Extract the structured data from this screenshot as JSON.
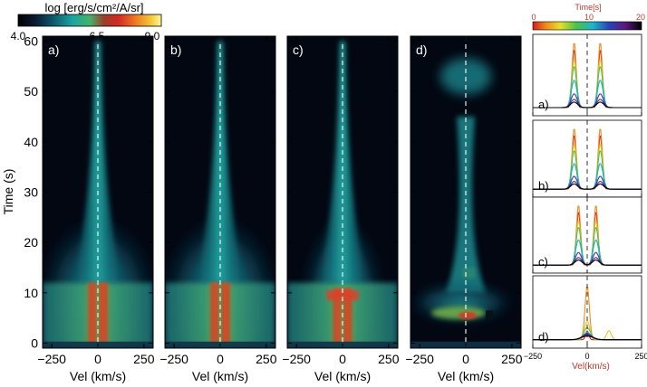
{
  "colorbar_intensity": {
    "label": "log [erg/s/cm²/A/sr]",
    "ticks": [
      "4.0",
      "6.5",
      "9.0"
    ],
    "range": [
      4.0,
      9.0
    ]
  },
  "colorbar_time": {
    "label": "Time[s]",
    "ticks": [
      "0",
      "10",
      "20"
    ],
    "range": [
      0,
      20
    ]
  },
  "axes_text": {
    "ylabel": "Time (s)",
    "xlabel": "Vel (km/s)",
    "mini_xlabel": "Vel(km/s)"
  },
  "chart_data": [
    {
      "type": "heatmap",
      "panel": "a)",
      "xlabel": "Vel (km/s)",
      "ylabel": "Time (s)",
      "xlim": [
        -300,
        300
      ],
      "ylim": [
        -1,
        61
      ],
      "xticks": [
        "-250",
        "0",
        "250"
      ],
      "yticks": [
        "0",
        "10",
        "20",
        "30",
        "40",
        "50",
        "60"
      ],
      "peak_offset": 30,
      "burst_time": [
        0,
        12
      ]
    },
    {
      "type": "heatmap",
      "panel": "b)",
      "xlabel": "Vel (km/s)",
      "xlim": [
        -300,
        300
      ],
      "ylim": [
        -1,
        61
      ],
      "xticks": [
        "-250",
        "0",
        "250"
      ],
      "peak_offset": 30,
      "burst_time": [
        0,
        12
      ]
    },
    {
      "type": "heatmap",
      "panel": "c)",
      "xlabel": "Vel (km/s)",
      "xlim": [
        -300,
        300
      ],
      "ylim": [
        -1,
        61
      ],
      "xticks": [
        "-250",
        "0",
        "250"
      ],
      "peak_offset": 28,
      "burst_time": [
        0,
        11
      ]
    },
    {
      "type": "heatmap",
      "panel": "d)",
      "xlabel": "Vel (km/s)",
      "xlim": [
        -300,
        300
      ],
      "ylim": [
        -1,
        61
      ],
      "xticks": [
        "-250",
        "0",
        "250"
      ],
      "peak_offset": 0,
      "burst_time": [
        4,
        8
      ]
    },
    {
      "type": "line",
      "panel": "a)",
      "xlim": [
        -250,
        250
      ],
      "series_peak_offset": 60,
      "time_colored": true
    },
    {
      "type": "line",
      "panel": "b)",
      "xlim": [
        -250,
        250
      ],
      "series_peak_offset": 60,
      "time_colored": true
    },
    {
      "type": "line",
      "panel": "c)",
      "xlim": [
        -250,
        250
      ],
      "series_peak_offset": 40,
      "time_colored": true
    },
    {
      "type": "line",
      "panel": "d)",
      "xlabel": "Vel(km/s)",
      "xlim": [
        -250,
        250
      ],
      "xticks": [
        "-250",
        "0",
        "250"
      ],
      "series_peak_offset": 0,
      "time_colored": true
    }
  ]
}
